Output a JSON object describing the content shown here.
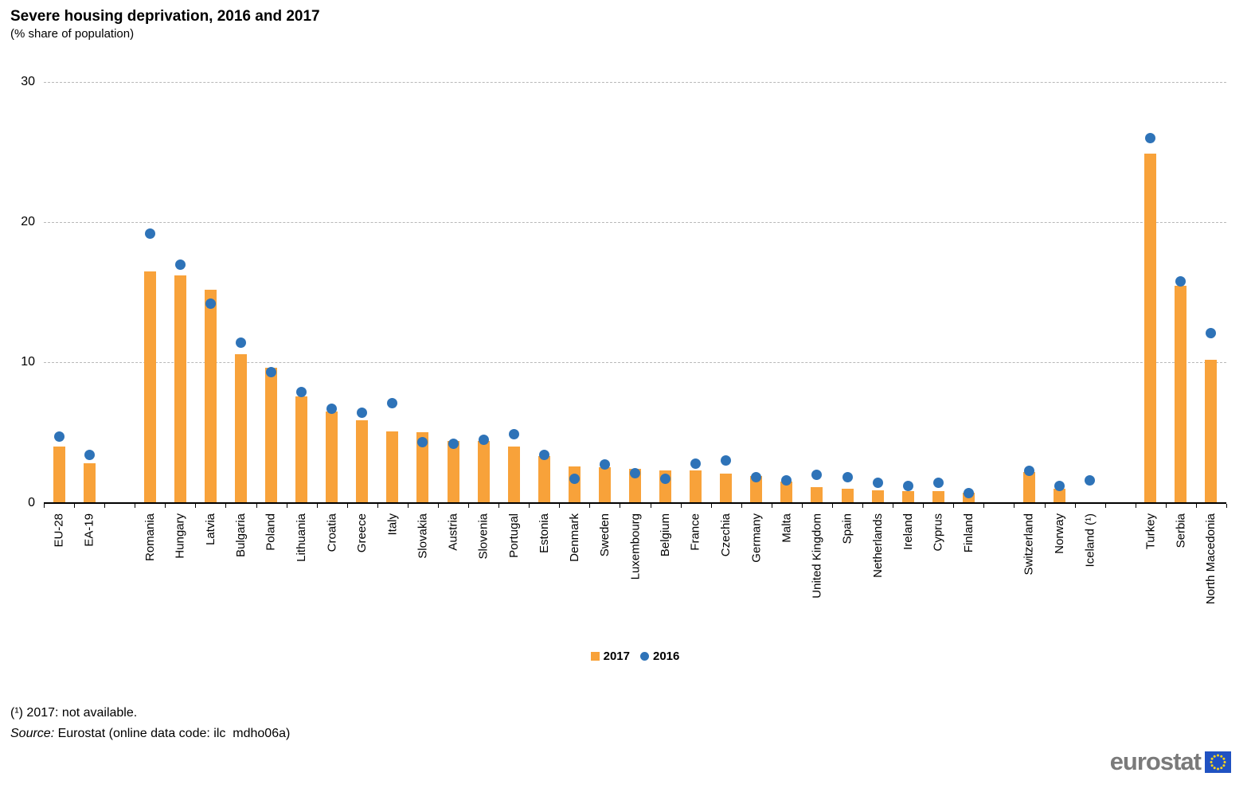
{
  "header": {
    "title": "Severe housing deprivation, 2016 and 2017",
    "subtitle": "(% share of population)"
  },
  "chart_data": {
    "type": "bar",
    "title": "Severe housing deprivation, 2016 and 2017",
    "subtitle": "(% share of population)",
    "ylabel": "% share of population",
    "ylim": [
      0,
      30
    ],
    "yticks": [
      0,
      10,
      20,
      30
    ],
    "grid": "horizontal-dashed",
    "legend_position": "bottom-center",
    "legend": [
      {
        "name": "2017",
        "marker": "square",
        "color": "#F8A23A"
      },
      {
        "name": "2016",
        "marker": "circle",
        "color": "#2E73B8"
      }
    ],
    "categories": [
      "EU-28",
      "EA-19",
      "Romania",
      "Hungary",
      "Latvia",
      "Bulgaria",
      "Poland",
      "Lithuania",
      "Croatia",
      "Greece",
      "Italy",
      "Slovakia",
      "Austria",
      "Slovenia",
      "Portugal",
      "Estonia",
      "Denmark",
      "Sweden",
      "Luxembourg",
      "Belgium",
      "France",
      "Czechia",
      "Germany",
      "Malta",
      "United Kingdom",
      "Spain",
      "Netherlands",
      "Ireland",
      "Cyprus",
      "Finland",
      "Switzerland",
      "Norway",
      "Iceland (¹)",
      "Turkey",
      "Serbia",
      "North Macedonia"
    ],
    "series": [
      {
        "name": "2017",
        "type": "bar",
        "color": "#F8A23A",
        "values": [
          4.0,
          2.8,
          16.5,
          16.2,
          15.2,
          10.6,
          9.6,
          7.6,
          6.5,
          5.9,
          5.1,
          5.0,
          4.4,
          4.4,
          4.0,
          3.3,
          2.6,
          2.5,
          2.4,
          2.3,
          2.3,
          2.1,
          1.9,
          1.5,
          1.1,
          1.0,
          0.9,
          0.8,
          0.8,
          0.7,
          2.2,
          1.0,
          null,
          24.9,
          15.5,
          10.2
        ]
      },
      {
        "name": "2016",
        "type": "scatter",
        "color": "#2E73B8",
        "values": [
          4.7,
          3.4,
          19.2,
          17.0,
          14.2,
          11.4,
          9.3,
          7.9,
          6.7,
          6.4,
          7.1,
          4.3,
          4.2,
          4.5,
          4.9,
          3.4,
          1.7,
          2.7,
          2.1,
          1.7,
          2.8,
          3.0,
          1.8,
          1.6,
          2.0,
          1.8,
          1.4,
          1.2,
          1.4,
          0.7,
          2.3,
          1.2,
          1.6,
          26.0,
          15.8,
          12.1
        ]
      }
    ],
    "gap_after": [
      "EA-19",
      "Finland",
      "Iceland (¹)"
    ]
  },
  "footer": {
    "note": "(¹) 2017: not available.",
    "source_label": "Source:",
    "source_text": " Eurostat (online data code: ilc  mdho06a)"
  },
  "logo": {
    "text": "eurostat"
  },
  "colors": {
    "bar": "#F8A23A",
    "dot": "#2E73B8",
    "grid": "#b8b8b8",
    "axis": "#000000",
    "logo_text": "#7a7a7a",
    "flag_bg": "#2052C2",
    "flag_stars": "#FFD617"
  }
}
